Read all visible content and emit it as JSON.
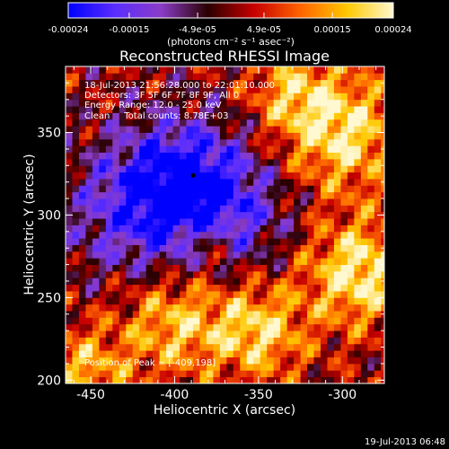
{
  "chart_data": {
    "type": "heatmap",
    "title": "Reconstructed RHESSI Image",
    "xlabel": "Heliocentric X (arcsec)",
    "ylabel": "Heliocentric Y (arcsec)",
    "xlim": [
      -465,
      -275
    ],
    "ylim": [
      198,
      390
    ],
    "xticks": [
      -450,
      -400,
      -350,
      -300
    ],
    "yticks": [
      200,
      250,
      300,
      350
    ],
    "colorbar": {
      "range": [
        -0.00024,
        0.00024
      ],
      "ticks": [
        -0.00024,
        -0.00015,
        -4.9e-05,
        4.9e-05,
        0.00015,
        0.00024
      ],
      "tick_labels": [
        "-0.00024",
        "-0.00015",
        "-4.9e-05",
        "4.9e-05",
        "0.00015",
        "0.00024"
      ],
      "unit": "(photons cm⁻² s⁻¹ asec⁻²)",
      "colormap": [
        "#0000ff",
        "#5a2dff",
        "#8b3cc8",
        "#2a0000",
        "#c80000",
        "#ff6400",
        "#ffc800",
        "#fff8d0"
      ]
    },
    "annotations": [
      "18-Jul-2013 21:56:28.000 to 22:01:10.000",
      "Detectors: 3F 5F 6F 7F 8F 9F, All 0",
      "Energy Range: 12.0 - 25.0 keV",
      "Clean     Total counts: 8.78E+03"
    ],
    "peak_label": "Position of Peak = [-409,198]",
    "marker": {
      "x": -389,
      "y": 324
    }
  },
  "footer": {
    "date": "19-Jul-2013 06:48"
  }
}
